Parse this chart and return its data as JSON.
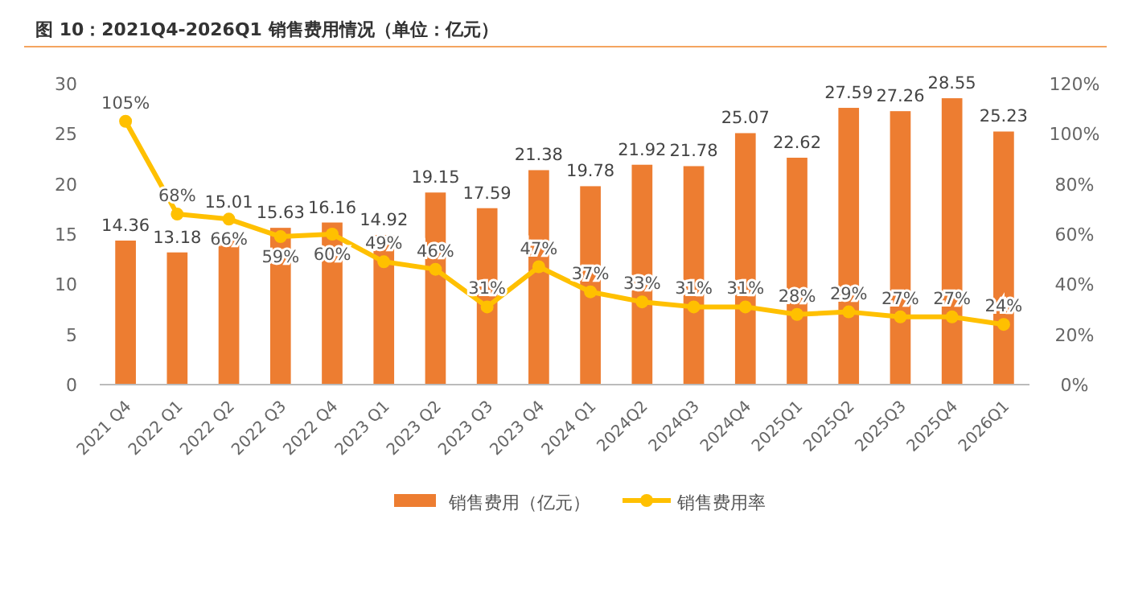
{
  "chart_data": {
    "type": "bar",
    "title": "图 10：2021Q4-2026Q1 销售费用情况（单位：亿元）",
    "categories": [
      "2021 Q4",
      "2022 Q1",
      "2022 Q2",
      "2022 Q3",
      "2022 Q4",
      "2023 Q1",
      "2023 Q2",
      "2023 Q3",
      "2023 Q4",
      "2024 Q1",
      "2024Q2",
      "2024Q3",
      "2024Q4",
      "2025Q1",
      "2025Q2",
      "2025Q3",
      "2025Q4",
      "2026Q1"
    ],
    "series": [
      {
        "name": "销售费用（亿元）",
        "type": "bar",
        "color": "#ed7d31",
        "values": [
          14.36,
          13.18,
          15.01,
          15.63,
          16.16,
          14.92,
          19.15,
          17.59,
          21.38,
          19.78,
          21.92,
          21.78,
          25.07,
          22.62,
          27.59,
          27.26,
          28.55,
          25.23
        ],
        "data_labels": true
      },
      {
        "name": "销售费用率",
        "type": "line",
        "axis": "y2",
        "color": "#ffc000",
        "marker": "circle",
        "values": [
          105,
          68,
          66,
          59,
          60,
          49,
          46,
          31,
          47,
          37,
          33,
          31,
          31,
          28,
          29,
          27,
          27,
          24
        ],
        "value_labels": [
          "105%",
          "68%",
          "66%",
          "59%",
          "60%",
          "49%",
          "46%",
          "31%",
          "47%",
          "37%",
          "33%",
          "31%",
          "31%",
          "28%",
          "29%",
          "27%",
          "27%",
          "24%"
        ]
      }
    ],
    "ylim": [
      0,
      30
    ],
    "yticks": [
      0,
      5,
      10,
      15,
      20,
      25,
      30
    ],
    "y2lim": [
      0,
      120
    ],
    "y2ticks": [
      {
        "value": 0,
        "label": "0%"
      },
      {
        "value": 20,
        "label": "20%"
      },
      {
        "value": 40,
        "label": "40%"
      },
      {
        "value": 60,
        "label": "60%"
      },
      {
        "value": 80,
        "label": "80%"
      },
      {
        "value": 100,
        "label": "100%"
      },
      {
        "value": 120,
        "label": "120%"
      }
    ],
    "grid": false,
    "legend": "bottom"
  }
}
